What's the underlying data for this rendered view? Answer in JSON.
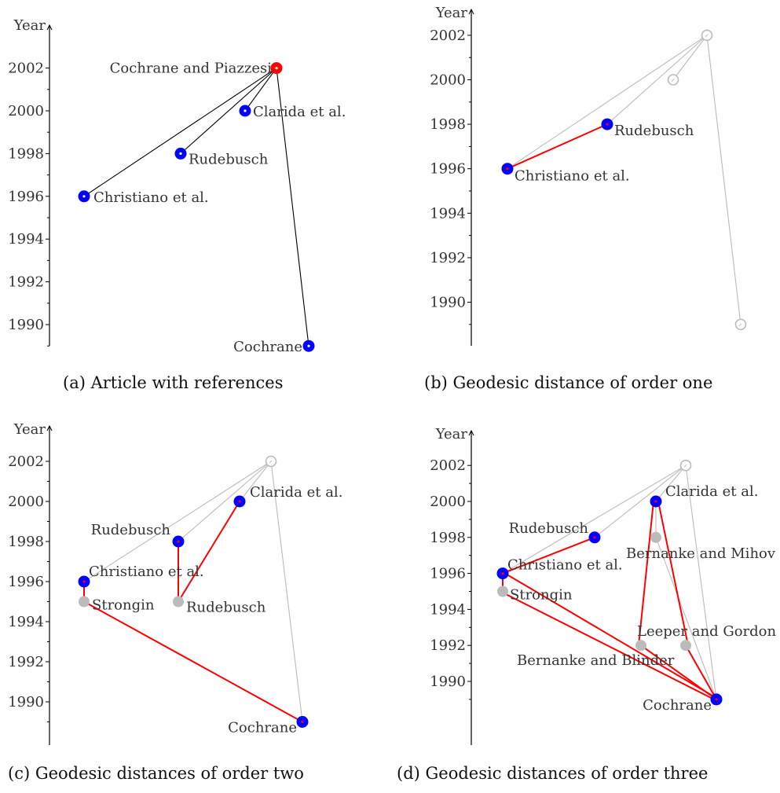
{
  "axis": {
    "label": "Year",
    "ticks": [
      1990,
      1992,
      1994,
      1996,
      1998,
      2000,
      2002
    ]
  },
  "colors": {
    "focal": "#ff0000",
    "reference": "#0000ff",
    "path": "#ff0000",
    "faded": "#bbbbbb",
    "edge": "#000000"
  },
  "panels": [
    {
      "caption": "(a) Article with references",
      "nodes": [
        {
          "id": "cp",
          "label": "Cochrane and Piazzesi",
          "year": 2002,
          "type": "focal"
        },
        {
          "id": "cl",
          "label": "Clarida et al.",
          "year": 2000,
          "type": "ref"
        },
        {
          "id": "ru",
          "label": "Rudebusch",
          "year": 1998,
          "type": "ref"
        },
        {
          "id": "ch",
          "label": "Christiano et al.",
          "year": 1996,
          "type": "ref"
        },
        {
          "id": "co",
          "label": "Cochrane",
          "year": 1989,
          "type": "ref"
        }
      ]
    },
    {
      "caption": "(b) Geodesic distance of order one",
      "nodes": [
        {
          "id": "cp",
          "label": "",
          "year": 2002,
          "type": "ghost"
        },
        {
          "id": "cl",
          "label": "",
          "year": 2000,
          "type": "ghost"
        },
        {
          "id": "ru",
          "label": "Rudebusch",
          "year": 1998,
          "type": "ref"
        },
        {
          "id": "ch",
          "label": "Christiano et al.",
          "year": 1996,
          "type": "ref"
        },
        {
          "id": "co",
          "label": "",
          "year": 1989,
          "type": "ghost"
        }
      ]
    },
    {
      "caption": "(c) Geodesic distances of order two",
      "nodes": [
        {
          "id": "cp",
          "label": "",
          "year": 2002,
          "type": "ghost"
        },
        {
          "id": "cl",
          "label": "Clarida et al.",
          "year": 2000,
          "type": "ref"
        },
        {
          "id": "ru",
          "label": "Rudebusch",
          "year": 1998,
          "type": "ref"
        },
        {
          "id": "ch",
          "label": "Christiano et al.",
          "year": 1996,
          "type": "ref"
        },
        {
          "id": "st",
          "label": "Strongin",
          "year": 1995,
          "type": "grey"
        },
        {
          "id": "ru2",
          "label": "Rudebusch",
          "year": 1995,
          "type": "grey"
        },
        {
          "id": "co",
          "label": "Cochrane",
          "year": 1989,
          "type": "ref"
        }
      ]
    },
    {
      "caption": "(d) Geodesic distances of order three",
      "nodes": [
        {
          "id": "cp",
          "label": "",
          "year": 2002,
          "type": "ghost"
        },
        {
          "id": "cl",
          "label": "Clarida et al.",
          "year": 2000,
          "type": "ref"
        },
        {
          "id": "ru",
          "label": "Rudebusch",
          "year": 1998,
          "type": "ref"
        },
        {
          "id": "bm",
          "label": "Bernanke and Mihov",
          "year": 1998,
          "type": "grey"
        },
        {
          "id": "ch",
          "label": "Christiano et al.",
          "year": 1996,
          "type": "ref"
        },
        {
          "id": "st",
          "label": "Strongin",
          "year": 1995,
          "type": "grey"
        },
        {
          "id": "bb",
          "label": "Bernanke and Blinder",
          "year": 1992,
          "type": "grey"
        },
        {
          "id": "lg",
          "label": "Leeper and Gordon",
          "year": 1992,
          "type": "grey"
        },
        {
          "id": "co",
          "label": "Cochrane",
          "year": 1989,
          "type": "ref"
        }
      ]
    }
  ]
}
